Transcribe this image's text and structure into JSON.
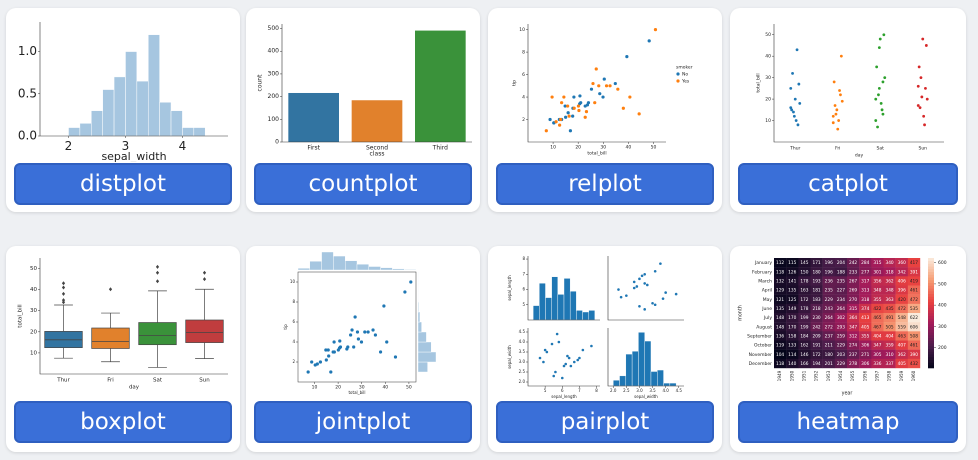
{
  "cards": [
    {
      "label": "distplot",
      "plot": {
        "type": "hist",
        "color": "#a6c6e0",
        "bins": [
          2.0,
          2.2,
          2.4,
          2.6,
          2.8,
          3.0,
          3.2,
          3.4,
          3.6,
          3.8,
          4.0,
          4.2,
          4.4
        ],
        "counts": [
          0.1,
          0.15,
          0.3,
          0.55,
          0.7,
          1.0,
          0.65,
          1.2,
          0.4,
          0.3,
          0.1,
          0.1
        ],
        "xlim": [
          1.5,
          4.8
        ],
        "ylim": [
          0,
          1.35
        ],
        "xticks": [
          2,
          3,
          4
        ],
        "yticks": [
          {
            "value": 0,
            "label": "0.0"
          },
          {
            "value": 0.5,
            "label": "0.5"
          },
          {
            "value": 1,
            "label": "1.0"
          }
        ],
        "xlabel": "sepal_width"
      }
    },
    {
      "label": "countplot",
      "plot": {
        "type": "bar",
        "categories": [
          "First",
          "Second",
          "Third"
        ],
        "values": [
          216,
          184,
          491
        ],
        "colors": [
          "#3274a1",
          "#e1812c",
          "#3a923a"
        ],
        "ylim": [
          0,
          520
        ],
        "yticks": [
          0,
          100,
          200,
          300,
          400,
          500
        ],
        "xlabel": "class",
        "ylabel": "count"
      }
    },
    {
      "label": "relplot",
      "plot": {
        "type": "scatter",
        "xlabel": "total_bill",
        "ylabel": "tip",
        "legend_title": "smoker",
        "xlim": [
          0,
          55
        ],
        "ylim": [
          0,
          10.5
        ],
        "xticks": [
          10,
          20,
          30,
          40,
          50
        ],
        "yticks": [
          2,
          4,
          6,
          8,
          10
        ],
        "series": [
          {
            "name": "No",
            "color": "#1f77b4",
            "x": [
              10.3,
              16.9,
              21.0,
              23.7,
              25.3,
              8.8,
              15.0,
              14.8,
              10.3,
              16.0,
              20.6,
              34.8,
              17.9,
              28.6,
              18.3,
              39.4,
              48.3,
              20.7,
              12.5,
              17.8,
              29.9,
              13.4,
              24.1,
              30.4,
              22.8
            ],
            "y": [
              1.7,
              1.0,
              3.5,
              3.3,
              4.7,
              2.0,
              2.2,
              3.2,
              1.7,
              2.6,
              3.4,
              5.2,
              3.0,
              4.3,
              4.0,
              7.6,
              9.0,
              4.1,
              2.0,
              2.3,
              4.0,
              2.0,
              3.5,
              5.6,
              3.2
            ]
          },
          {
            "name": "Yes",
            "color": "#ff7f0e",
            "x": [
              38.0,
              11.2,
              20.3,
              22.8,
              50.8,
              15.8,
              31.3,
              13.0,
              7.3,
              35.8,
              25.9,
              44.3,
              26.6,
              18.4,
              12.6,
              28.2,
              40.6,
              20.1,
              9.6,
              23.3,
              32.7,
              16.4,
              13.4,
              27.2,
              14.3
            ],
            "y": [
              3.0,
              1.8,
              2.8,
              2.2,
              10.0,
              3.2,
              5.0,
              2.0,
              1.0,
              4.7,
              5.2,
              2.5,
              3.5,
              3.0,
              1.5,
              5.0,
              4.0,
              3.2,
              4.0,
              2.7,
              5.0,
              2.3,
              3.5,
              6.5,
              4.0
            ]
          }
        ]
      }
    },
    {
      "label": "catplot",
      "plot": {
        "type": "strip",
        "categories": [
          "Thur",
          "Fri",
          "Sat",
          "Sun"
        ],
        "colors": [
          "#1f77b4",
          "#ff7f0e",
          "#2ca02c",
          "#d62728"
        ],
        "values": [
          [
            16,
            12,
            8,
            15,
            20,
            27,
            32,
            10,
            18,
            14,
            43,
            25
          ],
          [
            12,
            15,
            22,
            28,
            6,
            40,
            17,
            10,
            19,
            13,
            24,
            9
          ],
          [
            20,
            25,
            13,
            35,
            48,
            50,
            7,
            18,
            30,
            22,
            15,
            10,
            44,
            28
          ],
          [
            17,
            21,
            25,
            35,
            48,
            45,
            16,
            12,
            20,
            30,
            8,
            26
          ]
        ],
        "ylim": [
          0,
          55
        ],
        "yticks": [
          10,
          20,
          30,
          40,
          50
        ],
        "xlabel": "day",
        "ylabel": "total_bill"
      }
    },
    {
      "label": "boxplot",
      "plot": {
        "type": "box",
        "categories": [
          "Thur",
          "Fri",
          "Sat",
          "Sun"
        ],
        "colors": [
          "#3274a1",
          "#e1812c",
          "#3a923a",
          "#c03d3e"
        ],
        "boxes": [
          {
            "min": 7.5,
            "q1": 12.5,
            "median": 16.2,
            "q3": 20.2,
            "max": 32.7,
            "outliers": [
              34,
              35,
              38,
              41,
              43
            ]
          },
          {
            "min": 5.8,
            "q1": 12.1,
            "median": 15.4,
            "q3": 21.8,
            "max": 28.9,
            "outliers": [
              40.2
            ]
          },
          {
            "min": 3.1,
            "q1": 13.9,
            "median": 18.2,
            "q3": 24.4,
            "max": 39.4,
            "outliers": [
              44,
              48,
              50.8
            ]
          },
          {
            "min": 7.3,
            "q1": 14.9,
            "median": 19.6,
            "q3": 25.6,
            "max": 40.2,
            "outliers": [
              45,
              48
            ]
          }
        ],
        "ylim": [
          0,
          55
        ],
        "yticks": [
          10,
          20,
          30,
          40,
          50
        ],
        "xlabel": "day",
        "ylabel": "total_bill"
      }
    },
    {
      "label": "jointplot",
      "plot": {
        "type": "joint",
        "color": "#1f77b4",
        "hist_color": "#a6c6e0",
        "xlabel": "total_bill",
        "ylabel": "tip",
        "xlim": [
          3,
          53
        ],
        "ylim": [
          0,
          11
        ],
        "xticks": [
          10,
          20,
          30,
          40,
          50
        ],
        "yticks": [
          2,
          4,
          6,
          8,
          10
        ],
        "x": [
          10.3,
          16.9,
          21.0,
          23.7,
          25.3,
          8.8,
          15.0,
          14.8,
          16.0,
          20.6,
          34.8,
          17.9,
          28.6,
          18.3,
          39.4,
          48.3,
          20.7,
          12.5,
          29.9,
          24.1,
          38.0,
          11.2,
          50.8,
          15.8,
          31.3,
          7.3,
          35.8,
          25.9,
          44.3,
          26.6,
          18.4,
          28.2,
          40.6,
          20.1,
          32.7,
          27.2
        ],
        "y": [
          1.7,
          1.0,
          3.5,
          3.3,
          4.7,
          2.0,
          2.2,
          3.2,
          2.6,
          3.4,
          5.2,
          3.0,
          4.3,
          4.0,
          7.6,
          9.0,
          4.1,
          2.0,
          4.0,
          3.5,
          3.0,
          1.8,
          10.0,
          3.2,
          5.0,
          1.0,
          4.7,
          5.2,
          2.5,
          3.5,
          3.0,
          5.0,
          4.0,
          3.2,
          5.0,
          6.5
        ],
        "x_bins": [
          3,
          8,
          13,
          18,
          23,
          28,
          33,
          38,
          43,
          48,
          53
        ],
        "x_counts": [
          6,
          30,
          62,
          48,
          32,
          20,
          12,
          8,
          4,
          2
        ],
        "y_bins": [
          1,
          2,
          3,
          4,
          5,
          6,
          7,
          8,
          9,
          10,
          11
        ],
        "y_counts": [
          40,
          75,
          55,
          35,
          15,
          8,
          3,
          1,
          1,
          1
        ]
      }
    },
    {
      "label": "pairplot",
      "plot": {
        "type": "pair",
        "color": "#1f77b4",
        "vars": [
          "sepal_length",
          "sepal_width"
        ],
        "lims": [
          [
            4,
            8.2
          ],
          [
            1.8,
            4.7
          ]
        ],
        "ticks": [
          [
            5,
            6,
            7,
            8
          ],
          [
            {
              "value": 2,
              "label": "2.0"
            },
            {
              "value": 2.5,
              "label": "2.5"
            },
            {
              "value": 3,
              "label": "3.0"
            },
            {
              "value": 3.5,
              "label": "3.5"
            },
            {
              "value": 4,
              "label": "4.0"
            },
            {
              "value": 4.5,
              "label": "4.5"
            }
          ]
        ],
        "x": [
          5.1,
          4.9,
          4.7,
          5.0,
          5.4,
          5.8,
          5.7,
          6.4,
          6.9,
          5.5,
          6.5,
          6.3,
          7.0,
          6.0,
          6.7,
          7.7,
          6.2,
          5.6,
          7.2,
          6.1
        ],
        "y": [
          3.5,
          3.0,
          3.2,
          3.6,
          3.9,
          4.0,
          4.4,
          3.2,
          3.1,
          2.3,
          2.8,
          3.3,
          3.2,
          2.2,
          3.0,
          3.8,
          2.9,
          2.5,
          3.6,
          2.8
        ],
        "hist_ylim": [
          0,
          40
        ],
        "hists": [
          {
            "bins": [
              4.3,
              4.66,
              5.02,
              5.38,
              5.74,
              6.1,
              6.46,
              6.82,
              7.18,
              7.54,
              7.9
            ],
            "counts": [
              9,
              23,
              14,
              27,
              16,
              26,
              18,
              6,
              5,
              6
            ]
          },
          {
            "bins": [
              2.0,
              2.24,
              2.48,
              2.72,
              2.96,
              3.2,
              3.44,
              3.68,
              3.92,
              4.16,
              4.4
            ],
            "counts": [
              4,
              7,
              22,
              24,
              37,
              31,
              10,
              11,
              2,
              2
            ]
          }
        ]
      }
    },
    {
      "label": "heatmap",
      "plot": {
        "type": "heatmap",
        "xlabel": "year",
        "ylabel": "month",
        "clim": [
          104,
          622
        ],
        "cticks": [
          200,
          300,
          400,
          500,
          600
        ],
        "years": [
          "1949",
          "1950",
          "1951",
          "1952",
          "1953",
          "1954",
          "1955",
          "1956",
          "1957",
          "1958",
          "1959",
          "1960"
        ],
        "months": [
          "January",
          "February",
          "March",
          "April",
          "May",
          "June",
          "July",
          "August",
          "September",
          "October",
          "November",
          "December"
        ],
        "values": [
          [
            112,
            115,
            145,
            171,
            196,
            204,
            242,
            284,
            315,
            340,
            360,
            417
          ],
          [
            118,
            126,
            150,
            180,
            196,
            188,
            233,
            277,
            301,
            318,
            342,
            391
          ],
          [
            132,
            141,
            178,
            193,
            236,
            235,
            267,
            317,
            356,
            362,
            406,
            419
          ],
          [
            129,
            135,
            163,
            181,
            235,
            227,
            269,
            313,
            348,
            348,
            396,
            461
          ],
          [
            121,
            125,
            172,
            183,
            229,
            234,
            270,
            318,
            355,
            363,
            420,
            472
          ],
          [
            135,
            149,
            178,
            218,
            243,
            264,
            315,
            374,
            422,
            435,
            472,
            535
          ],
          [
            148,
            170,
            199,
            230,
            264,
            302,
            364,
            413,
            465,
            491,
            548,
            622
          ],
          [
            148,
            170,
            199,
            242,
            272,
            293,
            347,
            405,
            467,
            505,
            559,
            606
          ],
          [
            136,
            158,
            184,
            209,
            237,
            259,
            312,
            355,
            404,
            404,
            463,
            508
          ],
          [
            119,
            133,
            162,
            191,
            211,
            229,
            274,
            306,
            347,
            359,
            407,
            461
          ],
          [
            104,
            114,
            146,
            172,
            180,
            203,
            237,
            271,
            305,
            310,
            362,
            390
          ],
          [
            118,
            140,
            166,
            194,
            201,
            229,
            278,
            306,
            336,
            337,
            405,
            432
          ]
        ]
      }
    }
  ]
}
